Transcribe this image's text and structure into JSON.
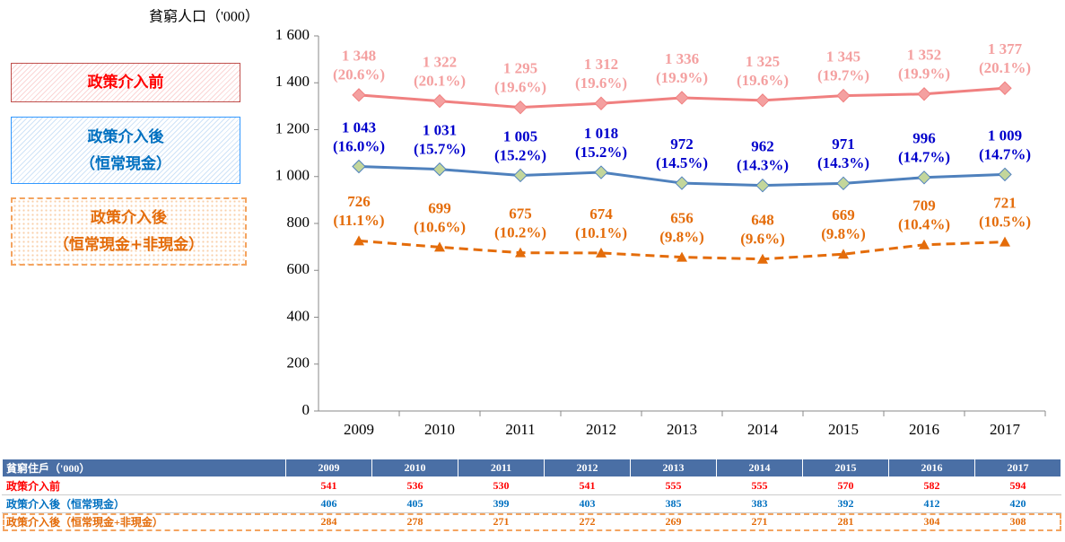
{
  "chart_data": {
    "type": "line",
    "y_label": "貧窮人口（'000）",
    "categories": [
      "2009",
      "2010",
      "2011",
      "2012",
      "2013",
      "2014",
      "2015",
      "2016",
      "2017"
    ],
    "ylim": [
      0,
      1600
    ],
    "yticks": [
      0,
      200,
      400,
      600,
      800,
      {
        "value": 1000,
        "label": "1 000"
      },
      {
        "value": 1200,
        "label": "1 200"
      },
      {
        "value": 1400,
        "label": "1 400"
      },
      {
        "value": 1600,
        "label": "1 600"
      }
    ],
    "grid": false,
    "series": [
      {
        "name": "政策介入前",
        "color": "#f08080",
        "marker": "diamond",
        "marker_color": "#f4a0a0",
        "label_color": "#f4a0a0",
        "legend_text_color": "#ff0000",
        "dashed": false,
        "values": [
          1348,
          1322,
          1295,
          1312,
          1336,
          1325,
          1345,
          1352,
          1377
        ],
        "value_labels": [
          "1 348",
          "1 322",
          "1 295",
          "1 312",
          "1 336",
          "1 325",
          "1 345",
          "1 352",
          "1 377"
        ],
        "rate_labels": [
          "(20.6%)",
          "(20.1%)",
          "(19.6%)",
          "(19.6%)",
          "(19.9%)",
          "(19.6%)",
          "(19.7%)",
          "(19.9%)",
          "(20.1%)"
        ]
      },
      {
        "name": "政策介入後\n（恒常現金）",
        "color": "#4f81bd",
        "marker": "diamond",
        "marker_color": "#c3d69b",
        "label_color": "#0000cc",
        "legend_text_color": "#0070c0",
        "dashed": false,
        "values": [
          1043,
          1031,
          1005,
          1018,
          972,
          962,
          971,
          996,
          1009
        ],
        "value_labels": [
          "1 043",
          "1 031",
          "1 005",
          "1 018",
          "972",
          "962",
          "971",
          "996",
          "1 009"
        ],
        "rate_labels": [
          "(16.0%)",
          "(15.7%)",
          "(15.2%)",
          "(15.2%)",
          "(14.5%)",
          "(14.3%)",
          "(14.3%)",
          "(14.7%)",
          "(14.7%)"
        ]
      },
      {
        "name": "政策介入後\n（恒常現金+非現金）",
        "color": "#e46c0a",
        "marker": "triangle",
        "marker_color": "#e46c0a",
        "label_color": "#e46c0a",
        "legend_text_color": "#e46c0a",
        "dashed": true,
        "values": [
          726,
          699,
          675,
          674,
          656,
          648,
          669,
          709,
          721
        ],
        "rate_labels": [
          "(11.1%)",
          "(10.6%)",
          "(10.2%)",
          "(10.1%)",
          "(9.8%)",
          "(9.6%)",
          "(9.8%)",
          "(10.4%)",
          "(10.5%)"
        ]
      }
    ]
  },
  "table": {
    "header": [
      "貧窮住戶（'000）",
      "2009",
      "2010",
      "2011",
      "2012",
      "2013",
      "2014",
      "2015",
      "2016",
      "2017"
    ],
    "rows": [
      [
        "政策介入前",
        "541",
        "536",
        "530",
        "541",
        "555",
        "555",
        "570",
        "582",
        "594"
      ],
      [
        "政策介入後（恒常現金）",
        "406",
        "405",
        "399",
        "403",
        "385",
        "383",
        "392",
        "412",
        "420"
      ],
      [
        "政策介入後（恒常現金+非現金）",
        "284",
        "278",
        "271",
        "272",
        "269",
        "271",
        "281",
        "304",
        "308"
      ]
    ]
  }
}
